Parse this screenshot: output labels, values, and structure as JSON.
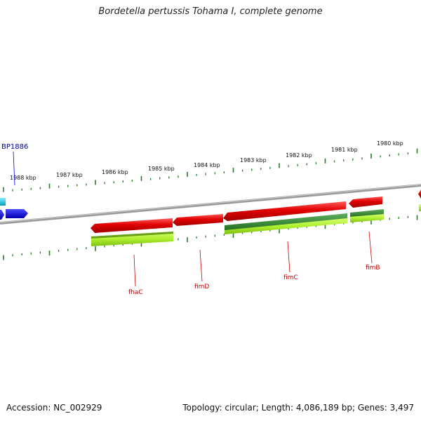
{
  "title": "Bordetella pertussis Tohama I, complete genome",
  "footer": {
    "accession": "Accession: NC_002929",
    "topology": "Topology: circular; Length: 4,086,189 bp; Genes: 3,497"
  },
  "scale_labels": [
    {
      "text": "1988 kbp"
    },
    {
      "text": "1987 kbp"
    },
    {
      "text": "1986 kbp"
    },
    {
      "text": "1985 kbp"
    },
    {
      "text": "1984 kbp"
    },
    {
      "text": "1983 kbp"
    },
    {
      "text": "1982 kbp"
    },
    {
      "text": "1981 kbp"
    },
    {
      "text": "1980 kbp"
    }
  ],
  "gene_labels": {
    "bp1886": "BP1886",
    "fhaC": "fhaC",
    "fimD": "fimD",
    "fimC": "fimC",
    "fimB": "fimB"
  },
  "colors": {
    "cds": "#e00000",
    "orf": "#9acd32",
    "orf_dark": "#2e8b2e",
    "blue_feature": "#0000ee",
    "cyan_feature": "#00bcd4",
    "backbone": "#888888",
    "ticks": "#2a7a2a",
    "gene_label": "#cc0000",
    "bp_label": "#0000aa"
  }
}
